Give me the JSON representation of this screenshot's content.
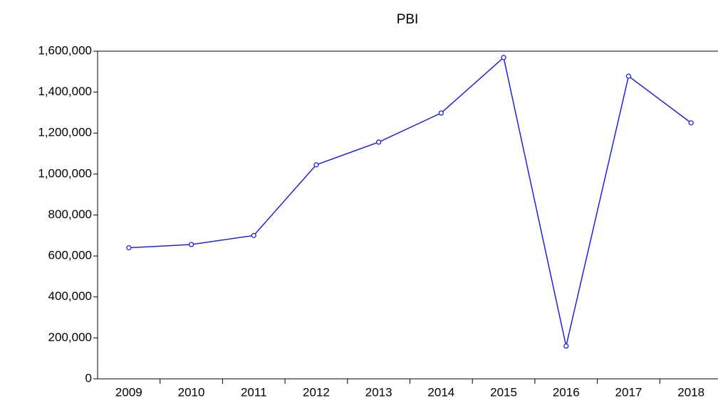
{
  "chart_data": {
    "type": "line",
    "title": "PBI",
    "categories": [
      "2009",
      "2010",
      "2011",
      "2012",
      "2013",
      "2014",
      "2015",
      "2016",
      "2017",
      "2018"
    ],
    "series": [
      {
        "name": "PBI",
        "color": "#2020e0",
        "values": [
          640000,
          656000,
          700000,
          1045000,
          1156000,
          1298000,
          1569000,
          160000,
          1478000,
          1250000
        ]
      }
    ],
    "ylim": [
      0,
      1600000
    ],
    "yticks": [
      0,
      {
        "value": 200000,
        "label": "200,000"
      },
      {
        "value": 400000,
        "label": "400,000"
      },
      {
        "value": 600000,
        "label": "600,000"
      },
      {
        "value": 800000,
        "label": "800,000"
      },
      {
        "value": 1000000,
        "label": "1,000,000"
      },
      {
        "value": 1200000,
        "label": "1,200,000"
      },
      {
        "value": 1400000,
        "label": "1,400,000"
      },
      {
        "value": 1600000,
        "label": "1,600,000"
      }
    ],
    "grid": false,
    "legend": false
  }
}
